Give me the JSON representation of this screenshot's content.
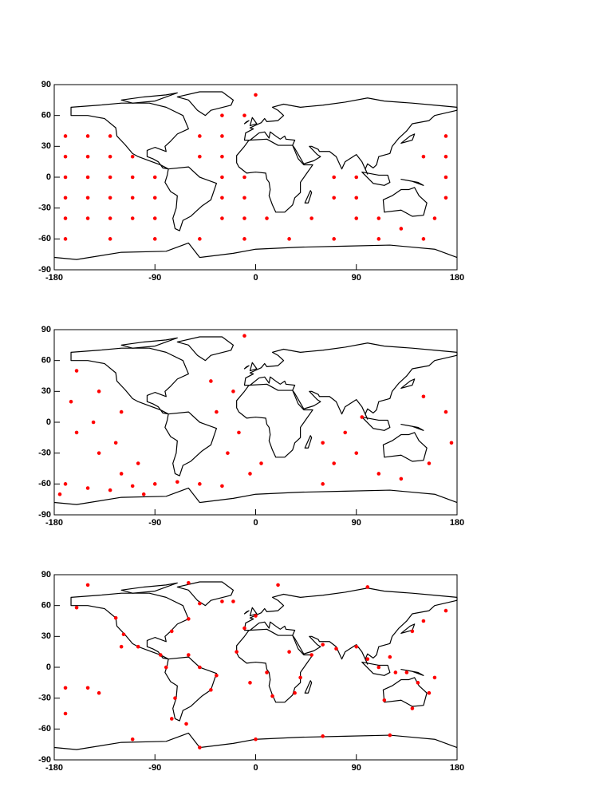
{
  "chart_data": [
    {
      "type": "scatter",
      "color": "#ff0000",
      "xlim": [
        -180,
        180
      ],
      "ylim": [
        -90,
        90
      ],
      "xticks": [
        -180,
        -90,
        0,
        90,
        180
      ],
      "yticks": [
        -90,
        -60,
        -30,
        0,
        30,
        60,
        90
      ],
      "x": [
        -170,
        -150,
        -130,
        -170,
        -150,
        -130,
        -110,
        -170,
        -150,
        -130,
        -110,
        -90,
        -170,
        -150,
        -130,
        -110,
        -90,
        -170,
        -150,
        -130,
        -110,
        -90,
        -170,
        -130,
        -90,
        -50,
        -10,
        30,
        70,
        110,
        150,
        -50,
        -30,
        -30,
        -50,
        -30,
        -10,
        -30,
        -10,
        -30,
        -10,
        10,
        -30,
        -10,
        70,
        90,
        70,
        90,
        50,
        90,
        110,
        130,
        150,
        170,
        170,
        170,
        170,
        160,
        0
      ],
      "values": [
        40,
        40,
        40,
        20,
        20,
        20,
        20,
        0,
        0,
        0,
        0,
        0,
        -20,
        -20,
        -20,
        -20,
        -20,
        -40,
        -40,
        -40,
        -40,
        -40,
        -60,
        -60,
        -60,
        -60,
        -60,
        -60,
        -60,
        -60,
        -60,
        40,
        40,
        20,
        20,
        0,
        0,
        -20,
        -20,
        -40,
        -40,
        -40,
        60,
        60,
        -20,
        -20,
        0,
        0,
        -40,
        -40,
        -40,
        -50,
        20,
        20,
        0,
        -20,
        40,
        -40,
        80
      ]
    },
    {
      "type": "scatter",
      "color": "#ff0000",
      "xlim": [
        -180,
        180
      ],
      "ylim": [
        -90,
        90
      ],
      "xticks": [
        -180,
        -90,
        0,
        90,
        180
      ],
      "yticks": [
        -90,
        -60,
        -30,
        0,
        30,
        60,
        90
      ],
      "x": [
        -160,
        -140,
        -120,
        -160,
        -140,
        -120,
        -100,
        -165,
        -145,
        -125,
        -105,
        -170,
        -150,
        -130,
        -110,
        -90,
        -70,
        -50,
        -30,
        -40,
        -20,
        -35,
        -15,
        -25,
        -5,
        5,
        60,
        80,
        70,
        90,
        110,
        95,
        130,
        150,
        170,
        155,
        175,
        -175,
        -10,
        60
      ],
      "values": [
        50,
        30,
        10,
        -10,
        -30,
        -50,
        -70,
        20,
        0,
        -20,
        -40,
        -60,
        -64,
        -66,
        -62,
        -60,
        -58,
        -60,
        -62,
        40,
        30,
        10,
        -10,
        -30,
        -50,
        -40,
        -20,
        -10,
        -40,
        -30,
        -50,
        5,
        -55,
        25,
        10,
        -40,
        -20,
        -70,
        84,
        -60
      ]
    },
    {
      "type": "scatter",
      "color": "#ff0000",
      "xlim": [
        -180,
        180
      ],
      "ylim": [
        -90,
        90
      ],
      "xticks": [
        -180,
        -90,
        0,
        90,
        180
      ],
      "yticks": [
        -90,
        -60,
        -30,
        0,
        30,
        60,
        90
      ],
      "x": [
        -160,
        -125,
        -118,
        -105,
        -85,
        -80,
        -72,
        -75,
        -62,
        -40,
        -35,
        -50,
        -60,
        -75,
        -60,
        -50,
        -30,
        -20,
        0,
        -10,
        -17,
        10,
        15,
        35,
        40,
        50,
        60,
        72,
        90,
        100,
        110,
        120,
        125,
        135,
        145,
        155,
        140,
        115,
        150,
        140,
        170,
        160,
        -150,
        -170,
        -140,
        -110,
        -50,
        0,
        60,
        120,
        -150,
        -60,
        20,
        100,
        -170,
        -120,
        30,
        -5
      ],
      "values": [
        58,
        48,
        32,
        20,
        12,
        0,
        -30,
        -50,
        -55,
        -22,
        -8,
        0,
        12,
        35,
        47,
        62,
        64,
        64,
        50,
        38,
        15,
        -5,
        -28,
        -25,
        -10,
        12,
        22,
        18,
        20,
        8,
        0,
        10,
        -5,
        -5,
        -15,
        -25,
        -40,
        -32,
        45,
        35,
        55,
        -10,
        -20,
        -20,
        -25,
        -70,
        -78,
        -70,
        -67,
        -66,
        80,
        82,
        80,
        78,
        -45,
        20,
        15,
        -15
      ]
    }
  ]
}
